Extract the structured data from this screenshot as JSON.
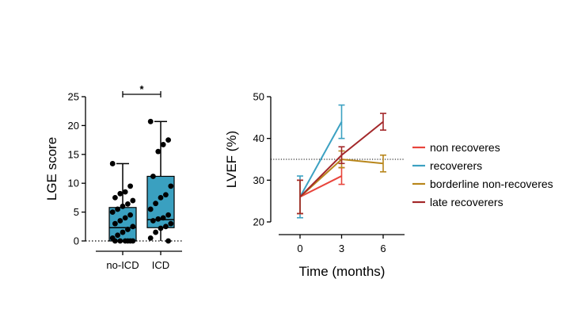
{
  "chart_data": [
    {
      "type": "box",
      "xlabel": "",
      "ylabel": "LGE score",
      "ylim": [
        0,
        25
      ],
      "yticks": [
        0,
        5,
        10,
        15,
        20,
        25
      ],
      "categories": [
        "no-ICD",
        "ICD"
      ],
      "box_color": "#3aa0c0",
      "reference_line": {
        "y": 0,
        "style": "dotted"
      },
      "significance": {
        "between": [
          "no-ICD",
          "ICD"
        ],
        "label": "*"
      },
      "boxes": [
        {
          "category": "no-ICD",
          "min": 0,
          "q1": 0,
          "median": 2.3,
          "q3": 5.8,
          "max": 13.4,
          "points": [
            13.4,
            9.5,
            8.5,
            8.2,
            7.5,
            7.0,
            6.4,
            6.0,
            5.5,
            5.0,
            4.5,
            4.0,
            3.5,
            3.0,
            2.5,
            2.0,
            1.5,
            1.0,
            0.5,
            0,
            0,
            0,
            0,
            0,
            0
          ]
        },
        {
          "category": "ICD",
          "min": 0,
          "q1": 2.3,
          "median": 3.7,
          "q3": 11.2,
          "max": 20.7,
          "points": [
            20.7,
            17.5,
            16.7,
            15.5,
            11.2,
            9.5,
            8.0,
            7.5,
            6.5,
            5.5,
            4.5,
            4.0,
            3.8,
            3.5,
            3.0,
            2.5,
            2.2,
            1.5,
            0.5,
            0
          ]
        }
      ]
    },
    {
      "type": "line",
      "xlabel": "Time (months)",
      "ylabel": "LVEF (%)",
      "x": [
        0,
        3,
        6
      ],
      "xticks": [
        0,
        3,
        6
      ],
      "ylim": [
        20,
        50
      ],
      "yticks": [
        20,
        30,
        40,
        50
      ],
      "reference_line": {
        "y": 35,
        "style": "dotted"
      },
      "legend_position": "right",
      "series": [
        {
          "name": "non recoveres",
          "color": "#e8453c",
          "x": [
            0,
            3
          ],
          "y": [
            26,
            31
          ],
          "err": [
            4,
            2
          ]
        },
        {
          "name": "recoverers",
          "color": "#3ca1c2",
          "x": [
            0,
            3
          ],
          "y": [
            26,
            44
          ],
          "err": [
            5,
            4
          ]
        },
        {
          "name": "borderline non-recoveres",
          "color": "#b8861b",
          "x": [
            0,
            3,
            6
          ],
          "y": [
            26,
            35,
            34
          ],
          "err": [
            4,
            2,
            2
          ]
        },
        {
          "name": "late recoverers",
          "color": "#a3282a",
          "x": [
            0,
            3,
            6
          ],
          "y": [
            26,
            36,
            44
          ],
          "err": [
            4,
            2,
            2
          ]
        }
      ]
    }
  ]
}
